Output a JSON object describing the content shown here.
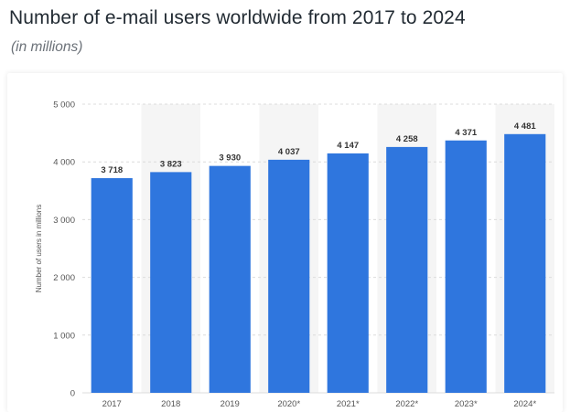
{
  "header": {
    "title": "Number of e-mail users worldwide from 2017 to 2024",
    "subtitle": "(in millions)"
  },
  "chart_data": {
    "type": "bar",
    "categories": [
      "2017",
      "2018",
      "2019",
      "2020*",
      "2021*",
      "2022*",
      "2023*",
      "2024*"
    ],
    "values": [
      3718,
      3823,
      3930,
      4037,
      4147,
      4258,
      4371,
      4481
    ],
    "value_labels": [
      "3 718",
      "3 823",
      "3 930",
      "4 037",
      "4 147",
      "4 258",
      "4 371",
      "4 481"
    ],
    "ylabel": "Number of users in millions",
    "ylim": [
      0,
      5000
    ],
    "yticks": [
      0,
      1000,
      2000,
      3000,
      4000,
      5000
    ],
    "ytick_labels": [
      "0",
      "1 000",
      "2 000",
      "3 000",
      "4 000",
      "5 000"
    ],
    "grid": true,
    "bar_color": "#2f76de",
    "band_color": "#f5f5f5"
  }
}
